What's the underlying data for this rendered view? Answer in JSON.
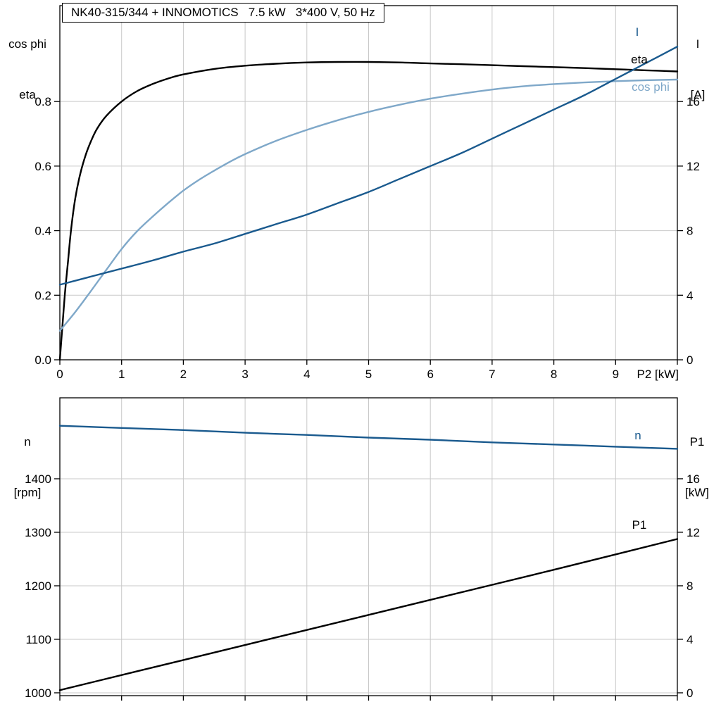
{
  "colors": {
    "black": "#000000",
    "dark_blue": "#1a5a8e",
    "light_blue": "#7fa8c9",
    "grid": "#c9c9c9",
    "frame": "#000000",
    "background": "#ffffff"
  },
  "chart_data": [
    {
      "type": "line",
      "title": "NK40-315/344 + INNOMOTICS   7.5 kW   3*400 V, 50 Hz",
      "left_axis_title": [
        "cos phi",
        "eta"
      ],
      "right_axis_title": [
        "I",
        "[A]"
      ],
      "x_axis_label": "P2 [kW]",
      "grid": true,
      "legend_position": "inline-right",
      "x_axis": {
        "min": 0,
        "max": 10,
        "ticks": [
          {
            "value": 0,
            "label": "0"
          },
          {
            "value": 1,
            "label": "1"
          },
          {
            "value": 2,
            "label": "2"
          },
          {
            "value": 3,
            "label": "3"
          },
          {
            "value": 4,
            "label": "4"
          },
          {
            "value": 5,
            "label": "5"
          },
          {
            "value": 6,
            "label": "6"
          },
          {
            "value": 7,
            "label": "7"
          },
          {
            "value": 8,
            "label": "8"
          },
          {
            "value": 9,
            "label": "9"
          },
          {
            "value": 10,
            "label": ""
          }
        ]
      },
      "left_axis": {
        "min": 0,
        "max": 1.097,
        "ticks": [
          {
            "value": 0.0,
            "label": "0.0"
          },
          {
            "value": 0.2,
            "label": "0.2"
          },
          {
            "value": 0.4,
            "label": "0.4"
          },
          {
            "value": 0.6,
            "label": "0.6"
          },
          {
            "value": 0.8,
            "label": "0.8"
          }
        ]
      },
      "right_axis": {
        "min": 0,
        "max": 21.94,
        "ticks": [
          {
            "value": 0,
            "label": "0"
          },
          {
            "value": 4,
            "label": "4"
          },
          {
            "value": 8,
            "label": "8"
          },
          {
            "value": 12,
            "label": "12"
          },
          {
            "value": 16,
            "label": "16"
          }
        ]
      },
      "series": [
        {
          "name": "eta",
          "axis": "left",
          "color": "black",
          "points": [
            [
              0,
              0
            ],
            [
              0.04,
              0.1
            ],
            [
              0.08,
              0.2
            ],
            [
              0.13,
              0.3
            ],
            [
              0.18,
              0.4
            ],
            [
              0.25,
              0.5
            ],
            [
              0.33,
              0.575
            ],
            [
              0.42,
              0.635
            ],
            [
              0.5,
              0.675
            ],
            [
              0.6,
              0.715
            ],
            [
              0.75,
              0.755
            ],
            [
              1,
              0.8
            ],
            [
              1.25,
              0.832
            ],
            [
              1.5,
              0.854
            ],
            [
              1.75,
              0.871
            ],
            [
              2,
              0.884
            ],
            [
              2.5,
              0.901
            ],
            [
              3,
              0.911
            ],
            [
              3.5,
              0.917
            ],
            [
              4,
              0.921
            ],
            [
              4.5,
              0.9225
            ],
            [
              5,
              0.9225
            ],
            [
              5.5,
              0.921
            ],
            [
              6,
              0.918
            ],
            [
              6.5,
              0.9155
            ],
            [
              7,
              0.9125
            ],
            [
              7.5,
              0.9095
            ],
            [
              8,
              0.9065
            ],
            [
              8.5,
              0.9035
            ],
            [
              9,
              0.9
            ],
            [
              9.5,
              0.8965
            ],
            [
              10,
              0.893
            ]
          ]
        },
        {
          "name": "cos phi",
          "axis": "left",
          "color": "light_blue",
          "points": [
            [
              0,
              0.09
            ],
            [
              0.25,
              0.148
            ],
            [
              0.5,
              0.212
            ],
            [
              0.75,
              0.278
            ],
            [
              1,
              0.343
            ],
            [
              1.25,
              0.398
            ],
            [
              1.5,
              0.443
            ],
            [
              1.75,
              0.485
            ],
            [
              2,
              0.524
            ],
            [
              2.25,
              0.557
            ],
            [
              2.5,
              0.586
            ],
            [
              2.75,
              0.613
            ],
            [
              3,
              0.637
            ],
            [
              3.5,
              0.678
            ],
            [
              4,
              0.712
            ],
            [
              4.5,
              0.742
            ],
            [
              5,
              0.768
            ],
            [
              5.5,
              0.79
            ],
            [
              6,
              0.809
            ],
            [
              6.5,
              0.824
            ],
            [
              7,
              0.837
            ],
            [
              7.5,
              0.847
            ],
            [
              8,
              0.854
            ],
            [
              8.5,
              0.859
            ],
            [
              9,
              0.863
            ],
            [
              9.5,
              0.866
            ],
            [
              10,
              0.868
            ]
          ]
        },
        {
          "name": "I",
          "axis": "right",
          "color": "dark_blue",
          "points": [
            [
              0,
              4.65
            ],
            [
              0.5,
              5.15
            ],
            [
              1,
              5.65
            ],
            [
              1.5,
              6.15
            ],
            [
              2,
              6.7
            ],
            [
              2.5,
              7.2
            ],
            [
              3,
              7.8
            ],
            [
              3.5,
              8.4
            ],
            [
              4,
              9.0
            ],
            [
              4.5,
              9.7
            ],
            [
              5,
              10.4
            ],
            [
              5.5,
              11.2
            ],
            [
              6,
              12.0
            ],
            [
              6.5,
              12.8
            ],
            [
              7,
              13.7
            ],
            [
              7.5,
              14.6
            ],
            [
              8,
              15.5
            ],
            [
              8.5,
              16.4
            ],
            [
              9,
              17.4
            ],
            [
              9.5,
              18.4
            ],
            [
              10,
              19.4
            ]
          ]
        }
      ]
    },
    {
      "type": "line",
      "title": "",
      "left_axis_title": [
        "n",
        "[rpm]"
      ],
      "right_axis_title": [
        "P1",
        "[kW]"
      ],
      "x_axis_label": "",
      "grid": true,
      "legend_position": "inline-right",
      "x_axis": {
        "min": 0,
        "max": 10,
        "ticks": [
          {
            "value": 0,
            "label": ""
          },
          {
            "value": 1,
            "label": ""
          },
          {
            "value": 2,
            "label": ""
          },
          {
            "value": 3,
            "label": ""
          },
          {
            "value": 4,
            "label": ""
          },
          {
            "value": 5,
            "label": ""
          },
          {
            "value": 6,
            "label": ""
          },
          {
            "value": 7,
            "label": ""
          },
          {
            "value": 8,
            "label": ""
          },
          {
            "value": 9,
            "label": ""
          },
          {
            "value": 10,
            "label": ""
          }
        ]
      },
      "left_axis": {
        "min": 994.7,
        "max": 1551.3,
        "ticks": [
          {
            "value": 1000,
            "label": "1000"
          },
          {
            "value": 1100,
            "label": "1100"
          },
          {
            "value": 1200,
            "label": "1200"
          },
          {
            "value": 1300,
            "label": "1300"
          },
          {
            "value": 1400,
            "label": "1400"
          }
        ]
      },
      "right_axis": {
        "min": -0.212,
        "max": 22.05,
        "ticks": [
          {
            "value": 0,
            "label": "0"
          },
          {
            "value": 4,
            "label": "4"
          },
          {
            "value": 8,
            "label": "8"
          },
          {
            "value": 12,
            "label": "12"
          },
          {
            "value": 16,
            "label": "16"
          }
        ]
      },
      "series": [
        {
          "name": "n",
          "axis": "left",
          "color": "dark_blue",
          "points": [
            [
              0,
              1499
            ],
            [
              1,
              1495
            ],
            [
              2,
              1491
            ],
            [
              3,
              1486
            ],
            [
              4,
              1482
            ],
            [
              5,
              1477
            ],
            [
              6,
              1473
            ],
            [
              7,
              1468
            ],
            [
              8,
              1464
            ],
            [
              9,
              1460
            ],
            [
              10,
              1456
            ]
          ]
        },
        {
          "name": "P1",
          "axis": "right",
          "color": "black",
          "points": [
            [
              0,
              0.2
            ],
            [
              2,
              2.45
            ],
            [
              4,
              4.7
            ],
            [
              6,
              6.95
            ],
            [
              8,
              9.2
            ],
            [
              10,
              11.5
            ]
          ]
        }
      ]
    }
  ]
}
